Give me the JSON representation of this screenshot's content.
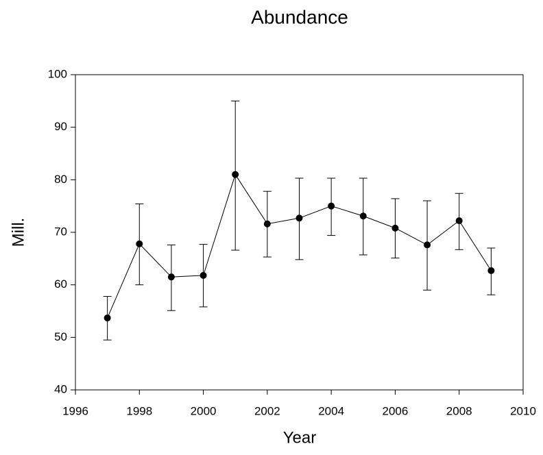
{
  "chart_data": {
    "type": "line",
    "title": "Abundance",
    "x_label": "Year",
    "y_label": "Mill.",
    "x": [
      1997,
      1998,
      1999,
      2000,
      2001,
      2002,
      2003,
      2004,
      2005,
      2006,
      2007,
      2008,
      2009
    ],
    "series": [
      {
        "color": "#000000",
        "values": [
          53.7,
          67.8,
          61.5,
          61.8,
          81.0,
          71.6,
          72.7,
          75.0,
          73.1,
          70.8,
          67.6,
          72.2,
          62.7
        ],
        "lower": [
          49.5,
          60.0,
          55.1,
          55.8,
          66.6,
          65.3,
          64.8,
          69.4,
          65.7,
          65.1,
          59.0,
          66.7,
          58.1
        ],
        "upper": [
          57.8,
          75.4,
          67.6,
          67.7,
          95.0,
          77.8,
          80.3,
          80.3,
          80.3,
          76.4,
          76.0,
          77.4,
          67.0
        ]
      }
    ],
    "xlim": [
      1996,
      2010
    ],
    "xticks": [
      1996,
      1998,
      2000,
      2002,
      2004,
      2006,
      2008,
      2010
    ],
    "ylim": [
      40,
      100
    ],
    "yticks": [
      40,
      50,
      60,
      70,
      80,
      90,
      100
    ]
  }
}
